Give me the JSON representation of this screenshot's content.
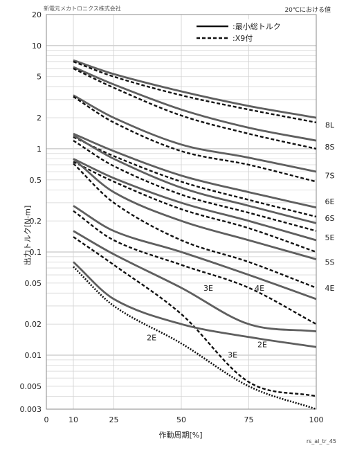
{
  "header": {
    "company": "新電元メカトロニクス株式会社",
    "condition": "20℃における値"
  },
  "footer_code": "rs_al_tr_45",
  "chart_data": {
    "type": "line",
    "xlabel": "作動周期[%]",
    "ylabel": "出力トルク[N-m]",
    "xlim": [
      0,
      100
    ],
    "ylim": [
      0.003,
      20
    ],
    "yscale": "log",
    "grid": true,
    "legend_position": "top-right",
    "x_ticks": [
      0,
      10,
      25,
      50,
      75,
      100
    ],
    "y_ticks": [
      0.003,
      0.005,
      0.01,
      0.02,
      0.05,
      0.1,
      0.2,
      0.5,
      1,
      2,
      5,
      10,
      20
    ],
    "y_tick_labels": [
      "0.003",
      "0.005",
      "0.01",
      "0.02",
      "0.05",
      "0.1",
      "0.2",
      "0.5",
      "1",
      "2",
      "5",
      "10",
      "20"
    ],
    "legend": [
      {
        "label": ":最小総トルク",
        "style": "solid"
      },
      {
        "label": ":X9付",
        "style": "dashed"
      }
    ],
    "series": [
      {
        "name": "8L",
        "style": "solid",
        "x": [
          10,
          25,
          50,
          75,
          100
        ],
        "y": [
          7.2,
          5.3,
          3.6,
          2.6,
          2.0
        ]
      },
      {
        "name": "8L",
        "style": "dashed",
        "x": [
          10,
          25,
          50,
          75,
          100
        ],
        "y": [
          7.0,
          5.0,
          3.3,
          2.4,
          1.8
        ]
      },
      {
        "name": "8S",
        "style": "solid",
        "x": [
          10,
          25,
          50,
          75,
          100
        ],
        "y": [
          6.2,
          4.2,
          2.4,
          1.6,
          1.2
        ]
      },
      {
        "name": "8S",
        "style": "dashed",
        "x": [
          10,
          25,
          50,
          75,
          100
        ],
        "y": [
          6.0,
          3.9,
          2.1,
          1.4,
          1.0
        ]
      },
      {
        "name": "7S",
        "style": "solid",
        "x": [
          10,
          25,
          50,
          75,
          100
        ],
        "y": [
          3.3,
          2.0,
          1.1,
          0.82,
          0.6
        ]
      },
      {
        "name": "7S",
        "style": "dashed",
        "x": [
          10,
          25,
          50,
          75,
          100
        ],
        "y": [
          3.2,
          1.8,
          0.95,
          0.7,
          0.48
        ]
      },
      {
        "name": "6E",
        "style": "solid",
        "x": [
          10,
          25,
          50,
          75,
          100
        ],
        "y": [
          1.4,
          0.95,
          0.55,
          0.38,
          0.27
        ]
      },
      {
        "name": "6E",
        "style": "dashed",
        "x": [
          10,
          25,
          50,
          75,
          100
        ],
        "y": [
          1.3,
          0.85,
          0.48,
          0.32,
          0.22
        ]
      },
      {
        "name": "6S",
        "style": "solid",
        "x": [
          10,
          25,
          50,
          75,
          100
        ],
        "y": [
          1.35,
          0.8,
          0.42,
          0.28,
          0.19
        ]
      },
      {
        "name": "6S",
        "style": "dashed",
        "x": [
          10,
          25,
          50,
          75,
          100
        ],
        "y": [
          1.2,
          0.68,
          0.36,
          0.24,
          0.16
        ]
      },
      {
        "name": "5E",
        "style": "solid",
        "x": [
          10,
          25,
          50,
          75,
          100
        ],
        "y": [
          0.8,
          0.52,
          0.3,
          0.2,
          0.13
        ]
      },
      {
        "name": "5E",
        "style": "dashed",
        "x": [
          10,
          25,
          50,
          75,
          100
        ],
        "y": [
          0.75,
          0.48,
          0.26,
          0.17,
          0.1
        ]
      },
      {
        "name": "5S",
        "style": "solid",
        "x": [
          10,
          25,
          50,
          75,
          100
        ],
        "y": [
          0.8,
          0.38,
          0.2,
          0.13,
          0.085
        ]
      },
      {
        "name": "5S",
        "style": "dashed",
        "x": [
          10,
          25,
          50,
          75,
          100
        ],
        "y": [
          0.72,
          0.3,
          0.13,
          0.08,
          0.045
        ]
      },
      {
        "name": "4E",
        "style": "solid",
        "x": [
          10,
          25,
          50,
          75,
          100
        ],
        "y": [
          0.28,
          0.16,
          0.1,
          0.06,
          0.035
        ]
      },
      {
        "name": "4E",
        "style": "dashed",
        "x": [
          10,
          25,
          50,
          75,
          100
        ],
        "y": [
          0.25,
          0.13,
          0.075,
          0.045,
          0.02
        ]
      },
      {
        "name": "3E",
        "style": "solid",
        "x": [
          10,
          25,
          50,
          75,
          100
        ],
        "y": [
          0.16,
          0.095,
          0.045,
          0.02,
          0.017
        ]
      },
      {
        "name": "3E",
        "style": "dashed",
        "x": [
          10,
          25,
          50,
          75,
          100
        ],
        "y": [
          0.14,
          0.075,
          0.025,
          0.0055,
          0.004
        ]
      },
      {
        "name": "2E",
        "style": "solid",
        "x": [
          10,
          25,
          50,
          75,
          100
        ],
        "y": [
          0.08,
          0.035,
          0.02,
          0.015,
          0.012
        ]
      },
      {
        "name": "2E",
        "style": "dotted",
        "x": [
          10,
          25,
          50,
          75,
          100
        ],
        "y": [
          0.072,
          0.03,
          0.013,
          0.005,
          0.003
        ]
      }
    ],
    "curve_labels": [
      {
        "text": "8L",
        "x": 105,
        "y": 1.6
      },
      {
        "text": "8S",
        "x": 105,
        "y": 0.98
      },
      {
        "text": "7S",
        "x": 105,
        "y": 0.52
      },
      {
        "text": "6E",
        "x": 105,
        "y": 0.29
      },
      {
        "text": "6S",
        "x": 105,
        "y": 0.2
      },
      {
        "text": "5E",
        "x": 105,
        "y": 0.13
      },
      {
        "text": "5S",
        "x": 105,
        "y": 0.075
      },
      {
        "text": "4E",
        "x": 105,
        "y": 0.042
      },
      {
        "text": "3E",
        "x": 60,
        "y": 0.042
      },
      {
        "text": "4E",
        "x": 79,
        "y": 0.042
      },
      {
        "text": "2E",
        "x": 39,
        "y": 0.014
      },
      {
        "text": "2E",
        "x": 80,
        "y": 0.012
      },
      {
        "text": "3E",
        "x": 69,
        "y": 0.0095
      }
    ]
  }
}
